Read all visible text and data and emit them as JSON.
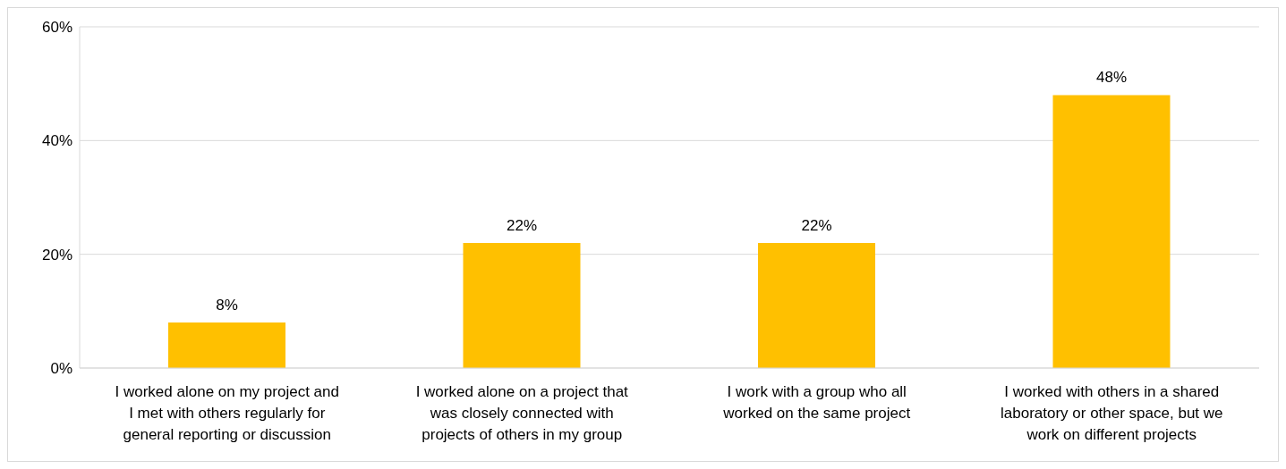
{
  "chart_data": {
    "type": "bar",
    "categories": [
      "I worked alone on my project and I met with others regularly for general reporting or discussion",
      "I worked alone on a project that was closely connected with projects of others in my group",
      "I work with a group who all worked on the same project",
      "I worked with others in a shared laboratory or other space, but we work on different projects"
    ],
    "values": [
      8,
      22,
      22,
      48
    ],
    "value_labels": [
      "8%",
      "22%",
      "22%",
      "48%"
    ],
    "color": "#ffc000",
    "ylim": [
      0,
      60
    ],
    "yticks": [
      {
        "value": 0,
        "label": "0%"
      },
      {
        "value": 20,
        "label": "20%"
      },
      {
        "value": 40,
        "label": "40%"
      },
      {
        "value": 60,
        "label": "60%"
      }
    ],
    "grid": "y",
    "legend": false
  }
}
